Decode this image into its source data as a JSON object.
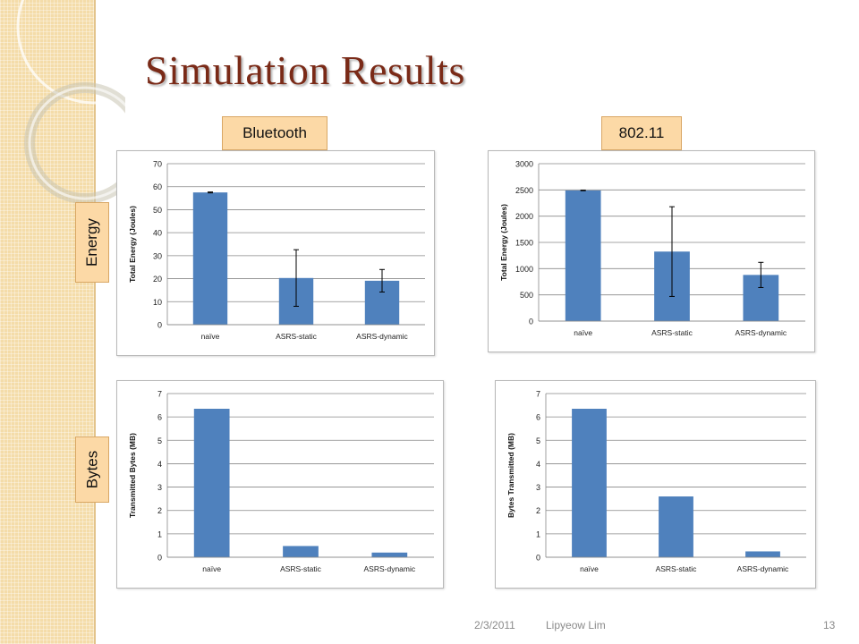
{
  "slide": {
    "title": "Simulation Results",
    "column_labels": [
      "Bluetooth",
      "802.11"
    ],
    "row_labels": [
      "Energy",
      "Bytes"
    ],
    "footer": {
      "date": "2/3/2011",
      "author": "Lipyeow Lim",
      "page": "13"
    }
  },
  "colors": {
    "bar": "#4f81bd",
    "title": "#7a2a17",
    "label_bg": "#fcd9a6"
  },
  "chart_data": [
    {
      "type": "bar",
      "categories": [
        "naïve",
        "ASRS-static",
        "ASRS-dynamic"
      ],
      "values": [
        57.5,
        20.3,
        19.1
      ],
      "error_low": [
        57.3,
        8.0,
        14.2
      ],
      "error_high": [
        57.7,
        32.6,
        24.0
      ],
      "ylabel": "Total Energy (Joules)",
      "ylim": [
        0,
        70
      ],
      "yticks": [
        0,
        10,
        20,
        30,
        40,
        50,
        60,
        70
      ],
      "grid": true
    },
    {
      "type": "bar",
      "categories": [
        "naïve",
        "ASRS-static",
        "ASRS-dynamic"
      ],
      "values": [
        2490,
        1325,
        880
      ],
      "error_low": [
        2485,
        470,
        640
      ],
      "error_high": [
        2495,
        2180,
        1120
      ],
      "ylabel": "Total Energy (Joules)",
      "ylim": [
        0,
        3000
      ],
      "yticks": [
        0,
        500,
        1000,
        1500,
        2000,
        2500,
        3000
      ],
      "grid": true
    },
    {
      "type": "bar",
      "categories": [
        "naïve",
        "ASRS-static",
        "ASRS-dynamic"
      ],
      "values": [
        6.35,
        0.48,
        0.2
      ],
      "ylabel": "Transmitted Bytes (MB)",
      "ylim": [
        0,
        7
      ],
      "yticks": [
        0,
        1,
        2,
        3,
        4,
        5,
        6,
        7
      ],
      "grid": true
    },
    {
      "type": "bar",
      "categories": [
        "naïve",
        "ASRS-static",
        "ASRS-dynamic"
      ],
      "values": [
        6.35,
        2.6,
        0.25
      ],
      "ylabel": "Bytes Transmitted  (MB)",
      "ylim": [
        0,
        7
      ],
      "yticks": [
        0,
        1,
        2,
        3,
        4,
        5,
        6,
        7
      ],
      "grid": true
    }
  ]
}
